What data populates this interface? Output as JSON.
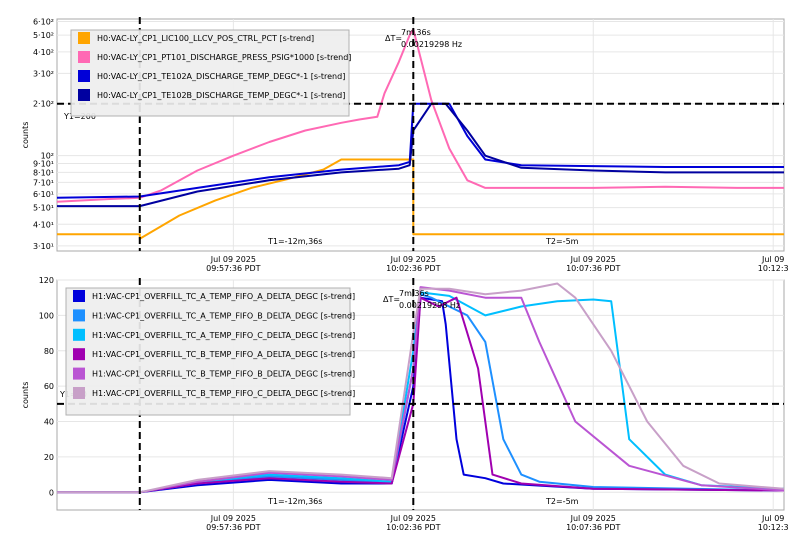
{
  "charts": [
    {
      "ylabel": "counts",
      "y_ticks": [
        {
          "label": "3·10¹",
          "v": 30
        },
        {
          "label": "4·10¹",
          "v": 40
        },
        {
          "label": "5·10¹",
          "v": 50
        },
        {
          "label": "6·10¹",
          "v": 60
        },
        {
          "label": "7·10¹",
          "v": 70
        },
        {
          "label": "8·10¹",
          "v": 80
        },
        {
          "label": "9·10¹",
          "v": 90
        },
        {
          "label": "10²",
          "v": 100
        },
        {
          "label": "2·10²",
          "v": 200
        },
        {
          "label": "3·10²",
          "v": 300
        },
        {
          "label": "4·10²",
          "v": 400
        },
        {
          "label": "5·10²",
          "v": 500
        },
        {
          "label": "6·10²",
          "v": 600
        }
      ],
      "x_ticks": [
        {
          "line1": "Jul 09 2025",
          "line2": "09:57:36 PDT"
        },
        {
          "line1": "Jul 09 2025",
          "line2": "10:02:36 PDT"
        },
        {
          "line1": "Jul 09 2025",
          "line2": "10:07:36 PDT"
        },
        {
          "line1": "Jul 09",
          "line2": "10:12:3"
        }
      ],
      "cursor_y_label": "Y1=200",
      "t1_label": "T1=-12m,36s",
      "t2_label": "T2=-5m",
      "delta_prefix": "ΔT=",
      "delta_line1": "7m,36s",
      "delta_line2": "0.00219298 Hz",
      "legend": [
        "H0:VAC-LY_CP1_LIC100_LLCV_POS_CTRL_PCT [s-trend]",
        "H0:VAC-LY_CP1_PT101_DISCHARGE_PRESS_PSIG*1000 [s-trend]",
        "H0:VAC-LY_CP1_TE102A_DISCHARGE_TEMP_DEGC*-1 [s-trend]",
        "H0:VAC-LY_CP1_TE102B_DISCHARGE_TEMP_DEGC*-1 [s-trend]"
      ]
    },
    {
      "ylabel": "counts",
      "y_ticks": [
        {
          "label": "0",
          "v": 0
        },
        {
          "label": "20",
          "v": 20
        },
        {
          "label": "40",
          "v": 40
        },
        {
          "label": "60",
          "v": 60
        },
        {
          "label": "80",
          "v": 80
        },
        {
          "label": "100",
          "v": 100
        },
        {
          "label": "120",
          "v": 120
        }
      ],
      "x_ticks": [
        {
          "line1": "Jul 09 2025",
          "line2": "09:57:36 PDT"
        },
        {
          "line1": "Jul 09 2025",
          "line2": "10:02:36 PDT"
        },
        {
          "line1": "Jul 09 2025",
          "line2": "10:07:36 PDT"
        },
        {
          "line1": "Jul 09",
          "line2": "10:12:3"
        }
      ],
      "cursor_y_label": "Y1=50",
      "t1_label": "T1=-12m,36s",
      "t2_label": "T2=-5m",
      "delta_prefix": "ΔT=",
      "delta_line1": "7m,36s",
      "delta_line2": "0.00219298 Hz",
      "legend": [
        "H1:VAC-CP1_OVERFILL_TC_A_TEMP_FIFO_A_DELTA_DEGC [s-trend]",
        "H1:VAC-CP1_OVERFILL_TC_A_TEMP_FIFO_B_DELTA_DEGC [s-trend]",
        "H1:VAC-CP1_OVERFILL_TC_A_TEMP_FIFO_C_DELTA_DEGC [s-trend]",
        "H1:VAC-CP1_OVERFILL_TC_B_TEMP_FIFO_A_DELTA_DEGC [s-trend]",
        "H1:VAC-CP1_OVERFILL_TC_B_TEMP_FIFO_B_DELTA_DEGC [s-trend]",
        "H1:VAC-CP1_OVERFILL_TC_B_TEMP_FIFO_C_DELTA_DEGC [s-trend]"
      ]
    }
  ],
  "chart_data": [
    {
      "type": "line",
      "y_scale": "log",
      "ylim": [
        28,
        620
      ],
      "ylabel": "counts",
      "x_unit": "minutes relative to 10:07:36 PDT",
      "xlim": [
        -14.9,
        5.3
      ],
      "cursors": {
        "x": [
          -12.6,
          -5.0
        ],
        "y": 200
      },
      "grid": true,
      "legend_position": "top-left",
      "series": [
        {
          "name": "H0:VAC-LY_CP1_LIC100_LLCV_POS_CTRL_PCT [s-trend]",
          "color": "#FFA500",
          "x": [
            -14.9,
            -12.6,
            -12.6,
            -11.5,
            -10.5,
            -9.5,
            -8.5,
            -7.5,
            -7.0,
            -6.0,
            -5.1,
            -5.0,
            -5.0,
            5.3
          ],
          "y": [
            35,
            35,
            33,
            45,
            55,
            65,
            73,
            83,
            95,
            95,
            95,
            95,
            35,
            35
          ]
        },
        {
          "name": "H0:VAC-LY_CP1_PT101_DISCHARGE_PRESS_PSIG*1000 [s-trend]",
          "color": "#FF69B4",
          "x": [
            -14.9,
            -13.5,
            -12.6,
            -12.0,
            -11.0,
            -10.0,
            -9.0,
            -8.0,
            -7.0,
            -6.5,
            -6.0,
            -5.8,
            -5.4,
            -5.1,
            -5.0,
            -4.5,
            -4.0,
            -3.5,
            -3.0,
            -2.0,
            0,
            2.0,
            4.0,
            5.3
          ],
          "y": [
            54,
            56,
            57,
            63,
            82,
            100,
            120,
            140,
            155,
            162,
            168,
            230,
            350,
            500,
            540,
            210,
            110,
            72,
            65,
            65,
            65,
            66,
            65,
            65
          ]
        },
        {
          "name": "H0:VAC-LY_CP1_TE102A_DISCHARGE_TEMP_DEGC*-1 [s-trend]",
          "color": "#0000D8",
          "x": [
            -14.9,
            -12.6,
            -11.0,
            -9.0,
            -7.0,
            -5.4,
            -5.1,
            -5.0,
            -4.7,
            -4.3,
            -4.0,
            -3.5,
            -3.0,
            -2.0,
            0,
            2.0,
            5.3
          ],
          "y": [
            57,
            58,
            65,
            75,
            83,
            88,
            92,
            200,
            200,
            200,
            200,
            130,
            95,
            88,
            87,
            86,
            86
          ]
        },
        {
          "name": "H0:VAC-LY_CP1_TE102B_DISCHARGE_TEMP_DEGC*-1 [s-trend]",
          "color": "#0000A0",
          "x": [
            -14.9,
            -12.6,
            -11.0,
            -9.0,
            -7.0,
            -5.4,
            -5.1,
            -5.0,
            -4.5,
            -4.1,
            -3.5,
            -3.0,
            -2.0,
            0,
            2.0,
            5.3
          ],
          "y": [
            51,
            51,
            62,
            72,
            80,
            84,
            88,
            140,
            200,
            200,
            140,
            100,
            85,
            82,
            80,
            80
          ]
        }
      ]
    },
    {
      "type": "line",
      "ylim": [
        -10,
        120
      ],
      "ylabel": "counts",
      "x_unit": "minutes relative to 10:07:36 PDT",
      "xlim": [
        -14.9,
        5.3
      ],
      "cursors": {
        "x": [
          -12.6,
          -5.0
        ],
        "y": 50
      },
      "grid": true,
      "legend_position": "top-left",
      "series": [
        {
          "name": "H1:VAC-CP1_OVERFILL_TC_A_TEMP_FIFO_A_DELTA_DEGC [s-trend]",
          "color": "#0000DC",
          "x": [
            -14.9,
            -12.6,
            -11.0,
            -9.0,
            -7.0,
            -5.6,
            -5.0,
            -4.8,
            -4.2,
            -4.1,
            -3.8,
            -3.6,
            -3.0,
            -2.5,
            0,
            5.3
          ],
          "y": [
            0,
            0,
            4,
            7,
            5,
            5,
            60,
            110,
            108,
            95,
            30,
            10,
            8,
            5,
            2,
            1
          ]
        },
        {
          "name": "H1:VAC-CP1_OVERFILL_TC_A_TEMP_FIFO_B_DELTA_DEGC [s-trend]",
          "color": "#1E90FF",
          "x": [
            -14.9,
            -12.6,
            -11.0,
            -9.0,
            -7.0,
            -5.6,
            -5.0,
            -4.8,
            -4.5,
            -3.5,
            -3.0,
            -2.5,
            -2.0,
            -1.5,
            0,
            5.3
          ],
          "y": [
            0,
            0,
            5,
            9,
            7,
            5,
            70,
            112,
            110,
            100,
            85,
            30,
            10,
            6,
            3,
            1
          ]
        },
        {
          "name": "H1:VAC-CP1_OVERFILL_TC_A_TEMP_FIFO_C_DELTA_DEGC [s-trend]",
          "color": "#00BFFF",
          "x": [
            -14.9,
            -12.6,
            -11.0,
            -9.0,
            -7.0,
            -5.6,
            -5.0,
            -4.8,
            -4.0,
            -3.0,
            -2.0,
            -1.0,
            0.0,
            0.5,
            1.0,
            2.0,
            3.0,
            5.3
          ],
          "y": [
            0,
            0,
            6,
            10,
            8,
            6,
            80,
            113,
            111,
            100,
            105,
            108,
            109,
            108,
            30,
            10,
            4,
            2
          ]
        },
        {
          "name": "H1:VAC-CP1_OVERFILL_TC_B_TEMP_FIFO_A_DELTA_DEGC [s-trend]",
          "color": "#A000B0",
          "x": [
            -14.9,
            -12.6,
            -11.0,
            -9.0,
            -7.0,
            -5.6,
            -5.0,
            -4.8,
            -4.3,
            -3.8,
            -3.2,
            -2.8,
            -2.0,
            0,
            5.3
          ],
          "y": [
            0,
            0,
            5,
            8,
            6,
            5,
            50,
            110,
            105,
            110,
            70,
            10,
            5,
            2,
            1
          ]
        },
        {
          "name": "H1:VAC-CP1_OVERFILL_TC_B_TEMP_FIFO_B_DELTA_DEGC [s-trend]",
          "color": "#BA55D3",
          "x": [
            -14.9,
            -12.6,
            -11.0,
            -9.0,
            -7.0,
            -5.6,
            -5.0,
            -4.8,
            -4.0,
            -3.0,
            -2.0,
            -1.5,
            -0.5,
            1.0,
            3.0,
            5.3
          ],
          "y": [
            0,
            0,
            6,
            11,
            9,
            7,
            70,
            116,
            114,
            110,
            110,
            85,
            40,
            15,
            4,
            1
          ]
        },
        {
          "name": "H1:VAC-CP1_OVERFILL_TC_B_TEMP_FIFO_C_DELTA_DEGC [s-trend]",
          "color": "#C8A0C8",
          "x": [
            -14.9,
            -12.6,
            -11.0,
            -9.0,
            -7.0,
            -5.6,
            -5.0,
            -4.8,
            -4.0,
            -3.0,
            -2.0,
            -1.0,
            -0.5,
            0.5,
            1.5,
            2.5,
            3.5,
            5.3
          ],
          "y": [
            0,
            0,
            7,
            12,
            10,
            8,
            90,
            115,
            115,
            112,
            114,
            118,
            110,
            80,
            40,
            15,
            5,
            2
          ]
        }
      ]
    }
  ]
}
